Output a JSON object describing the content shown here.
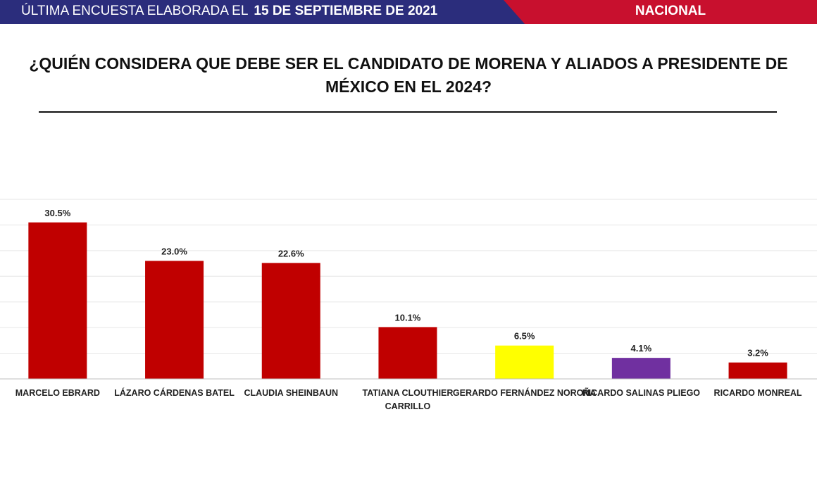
{
  "header": {
    "survey_label": "ÚLTIMA ENCUESTA ELABORADA EL",
    "survey_date": "15 DE SEPTIEMBRE DE 2021",
    "scope": "NACIONAL",
    "colors": {
      "navy": "#2b2d7c",
      "red": "#c8102e"
    }
  },
  "question": "¿QUIÉN CONSIDERA QUE DEBE SER EL CANDIDATO DE MORENA Y ALIADOS A PRESIDENTE DE MÉXICO EN EL 2024?",
  "chart_data": {
    "type": "bar",
    "title": "",
    "xlabel": "",
    "ylabel": "",
    "ylim": [
      0,
      35
    ],
    "grid": true,
    "legend": "none",
    "categories": [
      "MARCELO EBRARD",
      "LÁZARO CÁRDENAS BATEL",
      "CLAUDIA SHEINBAUN",
      "TATIANA CLOUTHIER CARRILLO",
      "GERARDO FERNÁNDEZ NOROÑA",
      "RICARDO SALINAS PLIEGO",
      "RICARDO MONREAL"
    ],
    "values": [
      30.5,
      23.0,
      22.6,
      10.1,
      6.5,
      4.1,
      3.2
    ],
    "value_labels": [
      "30.5%",
      "23.0%",
      "22.6%",
      "10.1%",
      "6.5%",
      "4.1%",
      "3.2%"
    ],
    "colors": [
      "#c00000",
      "#c00000",
      "#c00000",
      "#c00000",
      "#ffff00",
      "#7030a0",
      "#c00000"
    ]
  }
}
